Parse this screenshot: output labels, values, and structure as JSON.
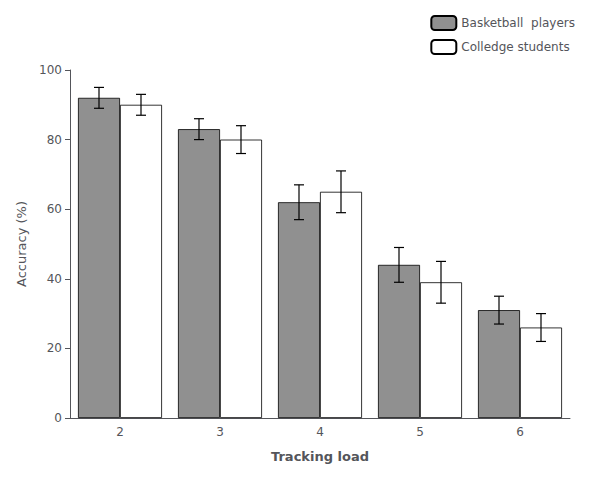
{
  "chart_data": {
    "type": "bar",
    "xlabel": "Tracking load",
    "ylabel": "Accuracy (%)",
    "categories": [
      "2",
      "3",
      "4",
      "5",
      "6"
    ],
    "series": [
      {
        "name": "Basketball  players",
        "color": "#909090",
        "values": [
          92,
          83,
          62,
          44,
          31
        ],
        "errors": [
          3,
          3,
          5,
          5,
          4
        ]
      },
      {
        "name": "Colledge students",
        "color": "#ffffff",
        "values": [
          90,
          80,
          65,
          39,
          26
        ],
        "errors": [
          3,
          4,
          6,
          6,
          4
        ]
      }
    ],
    "ylim": [
      0,
      100
    ],
    "yticks": [
      0,
      20,
      40,
      60,
      80,
      100
    ],
    "grid": false,
    "legend": "upper right"
  }
}
